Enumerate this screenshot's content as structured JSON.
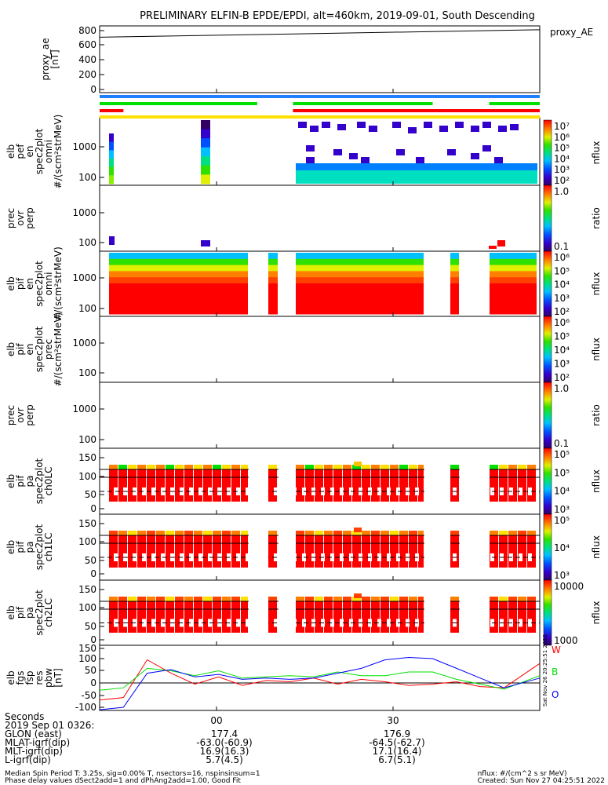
{
  "title": "PRELIMINARY ELFIN-B EPDE/EPDI, alt=460km, 2019-09-01, South Descending",
  "colors": {
    "red": "#ff0000",
    "green": "#00e000",
    "blue": "#0000ff",
    "yellow": "#ffe000",
    "lightblue": "#1f7fff"
  },
  "chart_data": [
    {
      "type": "line",
      "panel": "proxy_ae",
      "ylabel": "proxy_ae [nT]",
      "legend": "proxy_AE",
      "yticks": [
        "800",
        "600",
        "400",
        "200",
        "0"
      ],
      "ylim": [
        -60,
        860
      ],
      "x": [
        -17,
        57
      ],
      "values": [
        710,
        812
      ]
    },
    {
      "type": "bars",
      "panel": "status_bars",
      "rows": [
        {
          "color": "#1f7fff",
          "spans": [
            [
              -17,
              57
            ]
          ]
        },
        {
          "color": "#00e000",
          "spans": [
            [
              -17,
              9.5
            ],
            [
              15.5,
              39
            ],
            [
              48.5,
              57
            ]
          ]
        },
        {
          "color": "#ff0000",
          "spans": [
            [
              -17,
              -13
            ],
            [
              15.5,
              57
            ]
          ]
        },
        {
          "color": "#ffe000",
          "spans": [
            [
              -17,
              57
            ]
          ]
        }
      ]
    },
    {
      "type": "heatmap",
      "panel": "elb_pef_en_spec2plot_omni",
      "ylabel": "elb pef en spec2plot omni #/(scm²strMeV)",
      "yticks": [
        "1000",
        "100"
      ],
      "ylim_log": [
        60,
        7000
      ],
      "colorbar": {
        "labels": [
          "10⁷",
          "10⁶",
          "10⁵",
          "10⁴",
          "10³",
          "10²"
        ],
        "title": "nflux"
      }
    },
    {
      "type": "heatmap",
      "panel": "prec_ovr_perp",
      "ylabel": "prec ovr perp",
      "yticks": [
        "1000",
        "100"
      ],
      "colorbar": {
        "labels": [
          "1.0",
          "0.1"
        ],
        "title": "ratio"
      }
    },
    {
      "type": "heatmap",
      "panel": "elb_pif_en_spec2plot_omni",
      "ylabel": "elb pif en spec2plot omni #/(scm²strMeV)",
      "yticks": [
        "1000",
        "100"
      ],
      "colorbar": {
        "labels": [
          "10⁶",
          "10⁵",
          "10⁴",
          "10³",
          "10²"
        ],
        "title": "nflux"
      }
    },
    {
      "type": "heatmap",
      "panel": "elb_pif_en_spec2plot_prec",
      "ylabel": "elb pif en spec2plot prec #/(scm²strMeV)",
      "yticks": [
        "1000",
        "100"
      ],
      "colorbar": {
        "labels": [
          "10⁶",
          "10⁵",
          "10⁴",
          "10³",
          "10²"
        ],
        "title": "nflux"
      }
    },
    {
      "type": "heatmap",
      "panel": "prec_ovr_perp_2",
      "ylabel": "prec ovr perp",
      "yticks": [
        "1000",
        "100"
      ],
      "colorbar": {
        "labels": [
          "1.0",
          "0.1"
        ],
        "title": "ratio"
      }
    },
    {
      "type": "heatmap",
      "panel": "elb_pif_pa_spec2plot_ch0LC",
      "ylabel": "elb pif pa spec2plot ch0LC",
      "yticks": [
        "150",
        "100",
        "50",
        "0"
      ],
      "ylim": [
        -5,
        160
      ],
      "colorbar": {
        "labels": [
          "10⁵",
          "10⁵",
          "10⁴",
          "10³"
        ],
        "title": "nflux"
      }
    },
    {
      "type": "heatmap",
      "panel": "elb_pif_pa_spec2plot_ch1LC",
      "ylabel": "elb pif pa spec2plot ch1LC",
      "yticks": [
        "150",
        "100",
        "50",
        "0"
      ],
      "ylim": [
        -5,
        160
      ],
      "colorbar": {
        "labels": [
          "10⁵",
          "10⁴",
          "10³"
        ],
        "title": "nflux"
      }
    },
    {
      "type": "heatmap",
      "panel": "elb_pif_pa_spec2plot_ch2LC",
      "ylabel": "elb pif pa spec2plot ch2LC",
      "yticks": [
        "150",
        "100",
        "50",
        "0"
      ],
      "ylim": [
        -5,
        160
      ],
      "colorbar": {
        "labels": [
          "10000",
          "1000"
        ],
        "title": "nflux"
      }
    },
    {
      "type": "line",
      "panel": "elb_fgs_fsp_res_pbw",
      "ylabel": "elb fgs fsp res pbw [nT]",
      "yticks": [
        "150",
        "100",
        "50",
        "0",
        "-50",
        "-100"
      ],
      "ylim": [
        -115,
        160
      ],
      "x": [
        -17,
        -13,
        -9,
        -5,
        -1,
        3,
        7,
        11,
        15,
        19,
        23,
        27,
        31,
        35,
        39,
        43,
        47,
        51,
        57
      ],
      "series": [
        {
          "name": "W",
          "color": "#ff0000",
          "values": [
            -70,
            -60,
            95,
            40,
            -5,
            25,
            -10,
            10,
            5,
            20,
            -5,
            15,
            5,
            -10,
            -5,
            5,
            -15,
            -20,
            80
          ]
        },
        {
          "name": "B",
          "color": "#00e000",
          "values": [
            -30,
            -20,
            60,
            50,
            30,
            50,
            20,
            25,
            30,
            25,
            45,
            30,
            30,
            45,
            45,
            15,
            -5,
            -25,
            30
          ]
        },
        {
          "name": "O",
          "color": "#0000ff",
          "values": [
            -110,
            -100,
            40,
            55,
            25,
            35,
            15,
            20,
            15,
            20,
            40,
            60,
            95,
            105,
            100,
            60,
            20,
            -20,
            20
          ]
        }
      ]
    }
  ],
  "x_axis": {
    "label": "Seconds",
    "ticks": [
      "00",
      "30"
    ]
  },
  "side_stamp": "Sat Nov 26 20:25:51 2022",
  "footer": {
    "rows": [
      {
        "label": "2019 Sep 01 0326:",
        "a": "",
        "b": ""
      },
      {
        "label": "GLON (east)",
        "a": "177.4",
        "b": "176.9"
      },
      {
        "label": "MLAT-igrf(dip)",
        "a": "-63.0(-60.9)",
        "b": "-64.5(-62.7)"
      },
      {
        "label": "MLT-igrf(dip)",
        "a": "16.9(16.3)",
        "b": "17.1(16.4)"
      },
      {
        "label": "L-igrf(dip)",
        "a": "5.7(4.5)",
        "b": "6.7(5.1)"
      }
    ],
    "note1": "Median Spin Period T: 3.25s, sig=0.00% T, nsectors=16, nspinsinsum=1",
    "note2": "Phase delay values dSect2add=1 and dPhAng2add=1.00, Good Fit",
    "note3": "nflux: #/(cm^2 s sr MeV)",
    "note4": "Created: Sun Nov 27 04:25:51 2022"
  }
}
